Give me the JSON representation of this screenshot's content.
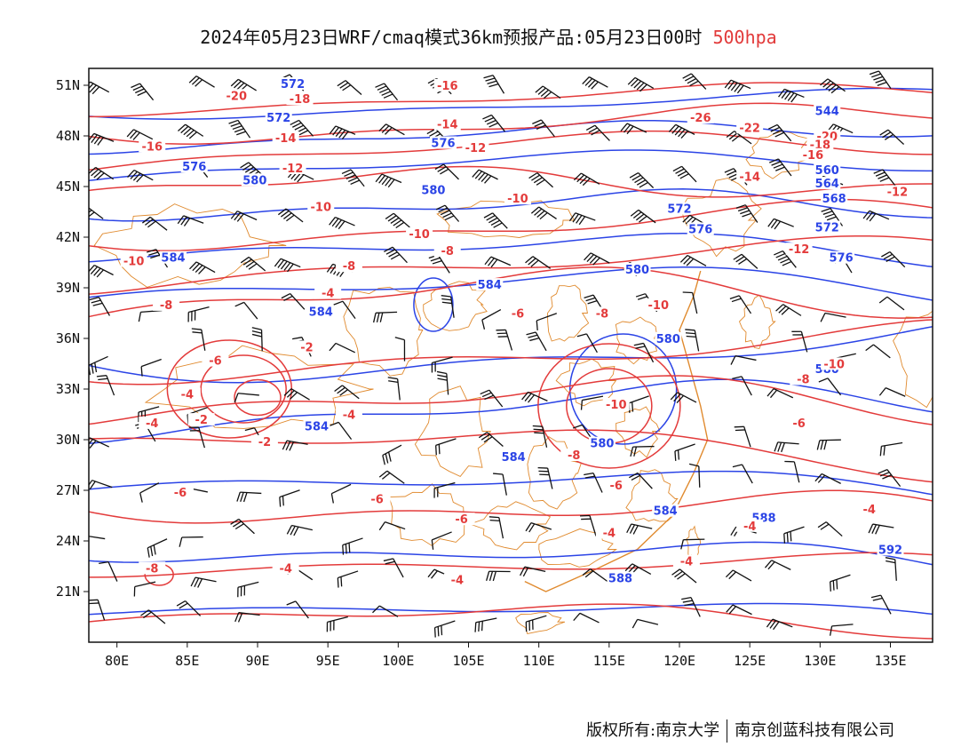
{
  "title": {
    "main": "2024年05月23日WRF/cmaq模式36km预报产品:05月23日00时",
    "level": "500hpa"
  },
  "map": {
    "lon_range": [
      78,
      138
    ],
    "lat_range": [
      18,
      52
    ],
    "lon_ticks": [
      "80E",
      "85E",
      "90E",
      "95E",
      "100E",
      "105E",
      "110E",
      "115E",
      "120E",
      "125E",
      "130E",
      "135E"
    ],
    "lat_ticks": [
      "21N",
      "24N",
      "27N",
      "30N",
      "33N",
      "36N",
      "39N",
      "42N",
      "45N",
      "48N",
      "51N"
    ],
    "height_color": "#2b44e6",
    "temp_color": "#e33b3b",
    "boundary_color": "#e08a2e",
    "barb_color": "#111111",
    "height_labels": [
      {
        "v": "576",
        "lon": 85.5,
        "lat": 46.1
      },
      {
        "v": "576",
        "lon": 103.2,
        "lat": 47.5
      },
      {
        "v": "580",
        "lon": 89.8,
        "lat": 45.3
      },
      {
        "v": "580",
        "lon": 102.5,
        "lat": 44.7
      },
      {
        "v": "584",
        "lon": 84.0,
        "lat": 40.7
      },
      {
        "v": "584",
        "lon": 106.5,
        "lat": 39.1
      },
      {
        "v": "584",
        "lon": 94.5,
        "lat": 37.5
      },
      {
        "v": "584",
        "lon": 94.2,
        "lat": 30.7
      },
      {
        "v": "584",
        "lon": 108.2,
        "lat": 28.9
      },
      {
        "v": "572",
        "lon": 120.0,
        "lat": 43.6
      },
      {
        "v": "576",
        "lon": 121.5,
        "lat": 42.4
      },
      {
        "v": "580",
        "lon": 117.0,
        "lat": 40.0
      },
      {
        "v": "560",
        "lon": 130.5,
        "lat": 45.9
      },
      {
        "v": "564",
        "lon": 130.5,
        "lat": 45.1
      },
      {
        "v": "568",
        "lon": 131.0,
        "lat": 44.2
      },
      {
        "v": "572",
        "lon": 130.5,
        "lat": 42.5
      },
      {
        "v": "576",
        "lon": 131.5,
        "lat": 40.7
      },
      {
        "v": "580",
        "lon": 119.2,
        "lat": 35.9
      },
      {
        "v": "580",
        "lon": 130.5,
        "lat": 34.1
      },
      {
        "v": "580",
        "lon": 114.5,
        "lat": 29.7
      },
      {
        "v": "584",
        "lon": 119.0,
        "lat": 25.7
      },
      {
        "v": "588",
        "lon": 126.0,
        "lat": 25.3
      },
      {
        "v": "588",
        "lon": 115.8,
        "lat": 21.7
      },
      {
        "v": "592",
        "lon": 135.0,
        "lat": 23.4
      },
      {
        "v": "544",
        "lon": 130.5,
        "lat": 49.4
      },
      {
        "v": "572",
        "lon": 91.5,
        "lat": 49.0
      },
      {
        "v": "572",
        "lon": 92.5,
        "lat": 51.0
      }
    ],
    "temp_labels": [
      {
        "v": "-20",
        "lon": 88.5,
        "lat": 50.3
      },
      {
        "v": "-18",
        "lon": 93.0,
        "lat": 50.1
      },
      {
        "v": "-16",
        "lon": 82.5,
        "lat": 47.3
      },
      {
        "v": "-14",
        "lon": 92.0,
        "lat": 47.8
      },
      {
        "v": "-12",
        "lon": 92.5,
        "lat": 46.0
      },
      {
        "v": "-10",
        "lon": 94.5,
        "lat": 43.7
      },
      {
        "v": "-10",
        "lon": 81.2,
        "lat": 40.5
      },
      {
        "v": "-8",
        "lon": 83.5,
        "lat": 37.9
      },
      {
        "v": "-8",
        "lon": 96.5,
        "lat": 40.2
      },
      {
        "v": "-4",
        "lon": 95.0,
        "lat": 38.6
      },
      {
        "v": "-6",
        "lon": 87.0,
        "lat": 34.6
      },
      {
        "v": "-4",
        "lon": 85.0,
        "lat": 32.6
      },
      {
        "v": "-2",
        "lon": 86.0,
        "lat": 31.1
      },
      {
        "v": "-4",
        "lon": 82.5,
        "lat": 30.9
      },
      {
        "v": "-2",
        "lon": 90.5,
        "lat": 29.8
      },
      {
        "v": "-2",
        "lon": 93.5,
        "lat": 35.4
      },
      {
        "v": "-4",
        "lon": 96.5,
        "lat": 31.4
      },
      {
        "v": "-6",
        "lon": 84.5,
        "lat": 26.8
      },
      {
        "v": "-6",
        "lon": 98.5,
        "lat": 26.4
      },
      {
        "v": "-6",
        "lon": 104.5,
        "lat": 25.2
      },
      {
        "v": "-8",
        "lon": 82.5,
        "lat": 22.3
      },
      {
        "v": "-4",
        "lon": 92.0,
        "lat": 22.3
      },
      {
        "v": "-4",
        "lon": 104.2,
        "lat": 21.6
      },
      {
        "v": "-16",
        "lon": 103.5,
        "lat": 50.9
      },
      {
        "v": "-14",
        "lon": 103.5,
        "lat": 48.6
      },
      {
        "v": "-12",
        "lon": 105.5,
        "lat": 47.2
      },
      {
        "v": "-10",
        "lon": 108.5,
        "lat": 44.2
      },
      {
        "v": "-10",
        "lon": 101.5,
        "lat": 42.1
      },
      {
        "v": "-8",
        "lon": 103.5,
        "lat": 41.1
      },
      {
        "v": "-8",
        "lon": 114.5,
        "lat": 37.4
      },
      {
        "v": "-6",
        "lon": 108.5,
        "lat": 37.4
      },
      {
        "v": "-10",
        "lon": 118.5,
        "lat": 37.9
      },
      {
        "v": "-10",
        "lon": 115.5,
        "lat": 32.0
      },
      {
        "v": "-8",
        "lon": 112.5,
        "lat": 29.0
      },
      {
        "v": "-6",
        "lon": 115.5,
        "lat": 27.2
      },
      {
        "v": "-4",
        "lon": 115.0,
        "lat": 24.4
      },
      {
        "v": "-4",
        "lon": 120.5,
        "lat": 22.7
      },
      {
        "v": "-4",
        "lon": 125.0,
        "lat": 24.8
      },
      {
        "v": "-6",
        "lon": 128.5,
        "lat": 30.9
      },
      {
        "v": "-8",
        "lon": 128.8,
        "lat": 33.5
      },
      {
        "v": "-10",
        "lon": 131.0,
        "lat": 34.4
      },
      {
        "v": "-12",
        "lon": 128.5,
        "lat": 41.2
      },
      {
        "v": "-14",
        "lon": 125.0,
        "lat": 45.5
      },
      {
        "v": "-12",
        "lon": 135.5,
        "lat": 44.6
      },
      {
        "v": "-26",
        "lon": 121.5,
        "lat": 49.0
      },
      {
        "v": "-22",
        "lon": 125.0,
        "lat": 48.4
      },
      {
        "v": "-20",
        "lon": 130.5,
        "lat": 47.9
      },
      {
        "v": "-18",
        "lon": 130.0,
        "lat": 47.4
      },
      {
        "v": "-16",
        "lon": 129.5,
        "lat": 46.8
      },
      {
        "v": "-4",
        "lon": 133.5,
        "lat": 25.8
      }
    ]
  },
  "footer": {
    "left": "版权所有:南京大学",
    "right": "南京创蓝科技有限公司"
  }
}
